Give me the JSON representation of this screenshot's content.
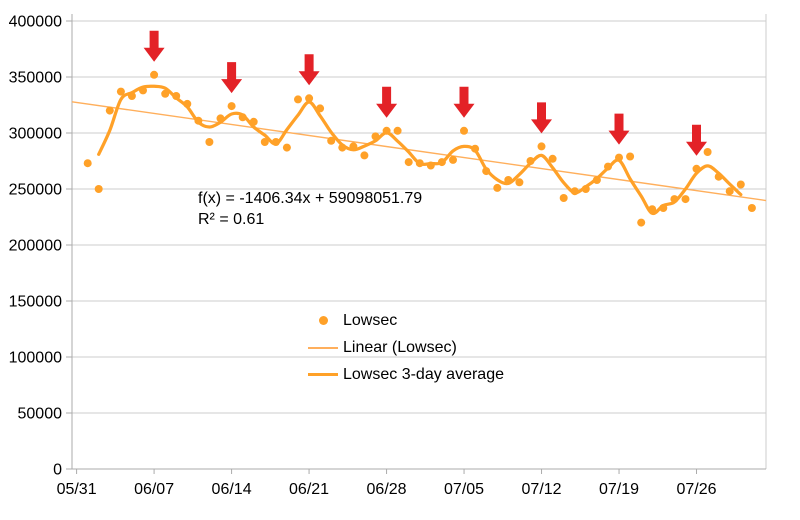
{
  "chart_data": {
    "type": "scatter",
    "title": "",
    "xlabel": "",
    "ylabel": "",
    "ylim": [
      0,
      400000
    ],
    "y_step": 50000,
    "y_tick_labels": [
      "0",
      "50000",
      "100000",
      "150000",
      "200000",
      "250000",
      "300000",
      "350000",
      "400000"
    ],
    "x_tick_labels": [
      "05/31",
      "06/07",
      "06/14",
      "06/21",
      "06/28",
      "07/05",
      "07/12",
      "07/19",
      "07/26"
    ],
    "grid": true,
    "legend_position": "inside-center-lower",
    "dates": [
      "06/01",
      "06/02",
      "06/03",
      "06/04",
      "06/05",
      "06/06",
      "06/07",
      "06/08",
      "06/09",
      "06/10",
      "06/11",
      "06/12",
      "06/13",
      "06/14",
      "06/15",
      "06/16",
      "06/17",
      "06/18",
      "06/19",
      "06/20",
      "06/21",
      "06/22",
      "06/23",
      "06/24",
      "06/25",
      "06/26",
      "06/27",
      "06/28",
      "06/29",
      "06/30",
      "07/01",
      "07/02",
      "07/03",
      "07/04",
      "07/05",
      "07/06",
      "07/07",
      "07/08",
      "07/09",
      "07/10",
      "07/11",
      "07/12",
      "07/13",
      "07/14",
      "07/15",
      "07/16",
      "07/17",
      "07/18",
      "07/19",
      "07/20",
      "07/21",
      "07/22",
      "07/23",
      "07/24",
      "07/25",
      "07/26",
      "07/27",
      "07/28",
      "07/29",
      "07/30",
      "07/31"
    ],
    "series": [
      {
        "name": "Lowsec",
        "type": "points",
        "color": "#FFA128",
        "values": [
          273000,
          250000,
          320000,
          337000,
          333000,
          338000,
          352000,
          335000,
          333000,
          326000,
          311000,
          292000,
          313000,
          324000,
          314000,
          310000,
          292000,
          292000,
          287000,
          330000,
          331000,
          322000,
          293000,
          287000,
          288000,
          280000,
          297000,
          302000,
          302000,
          274000,
          273000,
          271000,
          274000,
          276000,
          302000,
          286000,
          266000,
          251000,
          258000,
          256000,
          275000,
          288000,
          277000,
          242000,
          248000,
          250000,
          258000,
          270000,
          278000,
          279000,
          220000,
          232000,
          233000,
          241000,
          241000,
          268000,
          283000,
          261000,
          248000,
          254000,
          233000
        ]
      },
      {
        "name": "Linear (Lowsec)",
        "type": "linear-trend",
        "color": "#FFAF5C",
        "slope_per_day": -1406.34,
        "value_at_05_31": 327300,
        "equation": "f(x) = -1406.34x + 59098051.79",
        "r_squared": "R² = 0.61"
      },
      {
        "name": "Lowsec 3-day average",
        "type": "centered-moving-average",
        "window": 3,
        "color": "#FFA128"
      }
    ],
    "annotations": {
      "arrow_dates": [
        "06/07",
        "06/14",
        "06/21",
        "06/28",
        "07/05",
        "07/12",
        "07/19",
        "07/26"
      ],
      "arrow_color": "#E32227"
    }
  },
  "equation": {
    "line1": "f(x) = -1406.34x + 59098051.79",
    "line2": "R² = 0.61"
  },
  "legend": {
    "lowsec": "Lowsec",
    "linear": "Linear (Lowsec)",
    "average": "Lowsec 3-day average"
  },
  "colors": {
    "points": "#FFA128",
    "trend": "#FFAF5C",
    "average": "#FFA128",
    "arrow": "#E32227",
    "gridline": "#CCCCCC",
    "axis": "#ABABAB"
  }
}
